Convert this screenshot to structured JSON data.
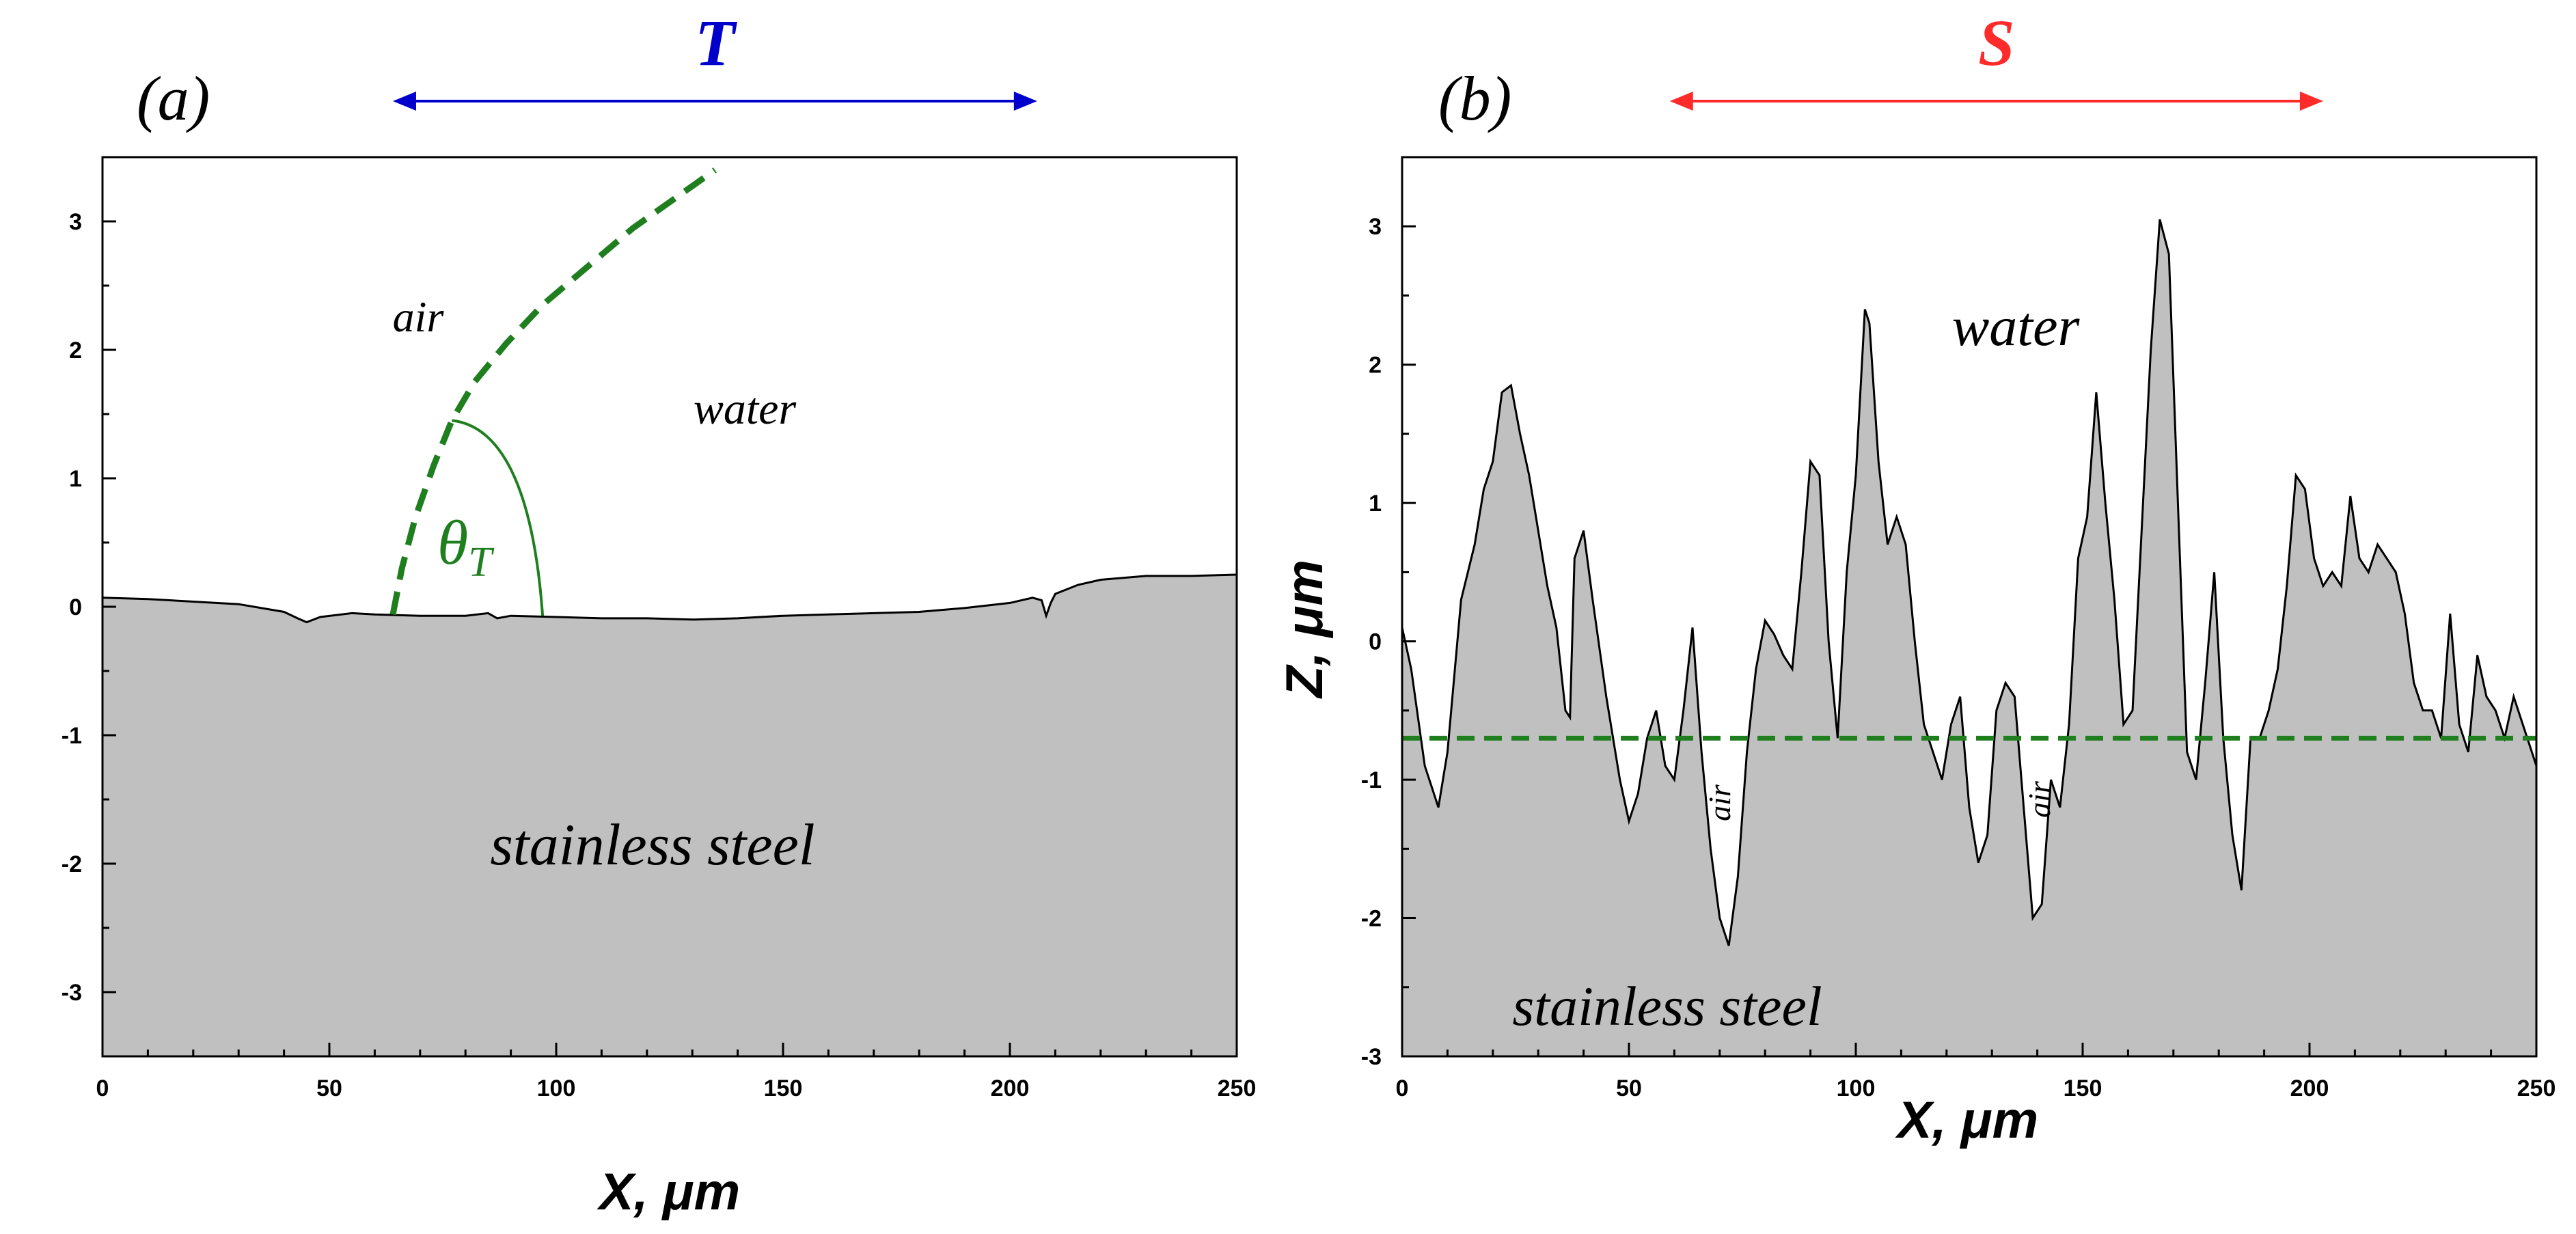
{
  "chart_data": [
    {
      "id": "a",
      "type": "line",
      "panel_label": "(a)",
      "title": "",
      "xlabel": "X, μm",
      "ylabel": "",
      "xlim": [
        0,
        250
      ],
      "ylim": [
        -3.5,
        3.5
      ],
      "xticks": [
        0,
        50,
        100,
        150,
        200,
        250
      ],
      "yticks": [
        -3,
        -2,
        -1,
        0,
        1,
        2,
        3
      ],
      "grid": false,
      "surface_profile": {
        "x": [
          0,
          10,
          20,
          30,
          40,
          43,
          45,
          48,
          55,
          60,
          70,
          80,
          85,
          87,
          90,
          100,
          110,
          120,
          130,
          140,
          150,
          160,
          170,
          180,
          190,
          200,
          205,
          207,
          208,
          209,
          210,
          215,
          220,
          230,
          240,
          250
        ],
        "z": [
          0.07,
          0.06,
          0.04,
          0.02,
          -0.04,
          -0.09,
          -0.12,
          -0.08,
          -0.05,
          -0.06,
          -0.07,
          -0.07,
          -0.05,
          -0.09,
          -0.07,
          -0.08,
          -0.09,
          -0.09,
          -0.1,
          -0.09,
          -0.07,
          -0.06,
          -0.05,
          -0.04,
          -0.01,
          0.03,
          0.07,
          0.05,
          -0.07,
          0.03,
          0.1,
          0.17,
          0.21,
          0.24,
          0.24,
          0.25
        ]
      },
      "droplet_interface": {
        "x": [
          64,
          66,
          69,
          73,
          77,
          82,
          89,
          97,
          107,
          117,
          127,
          135
        ],
        "z": [
          -0.06,
          0.3,
          0.7,
          1.1,
          1.45,
          1.75,
          2.05,
          2.35,
          2.65,
          2.95,
          3.2,
          3.4
        ]
      },
      "span": {
        "label": "T",
        "x_from": 64,
        "x_to": 206,
        "color": "#0000cc"
      },
      "annotations": {
        "angle_label": "θ",
        "angle_subscript": "T",
        "air": "air",
        "water": "water",
        "solid": "stainless steel"
      },
      "colors": {
        "solid": "#c0c0c0",
        "interface": "#1f7f1f",
        "line": "#000000"
      }
    },
    {
      "id": "b",
      "type": "line",
      "panel_label": "(b)",
      "title": "",
      "xlabel": "X, μm",
      "ylabel": "Z, μm",
      "xlim": [
        0,
        250
      ],
      "ylim": [
        -3,
        3.5
      ],
      "xticks": [
        0,
        50,
        100,
        150,
        200,
        250
      ],
      "yticks": [
        -3,
        -2,
        -1,
        0,
        1,
        2,
        3
      ],
      "grid": false,
      "surface_profile": {
        "x": [
          0,
          2,
          5,
          8,
          10,
          13,
          16,
          18,
          20,
          22,
          24,
          26,
          28,
          30,
          32,
          34,
          36,
          37,
          38,
          40,
          42,
          45,
          48,
          50,
          52,
          54,
          56,
          58,
          60,
          62,
          64,
          66,
          68,
          70,
          72,
          74,
          76,
          78,
          80,
          82,
          84,
          86,
          88,
          90,
          92,
          94,
          96,
          98,
          100,
          102,
          103,
          105,
          107,
          109,
          111,
          113,
          115,
          117,
          119,
          121,
          123,
          125,
          127,
          129,
          131,
          133,
          135,
          137,
          139,
          141,
          143,
          145,
          147,
          149,
          151,
          153,
          155,
          157,
          159,
          161,
          163,
          165,
          167,
          169,
          171,
          173,
          175,
          177,
          179,
          181,
          183,
          185,
          187,
          189,
          191,
          193,
          195,
          197,
          199,
          201,
          203,
          205,
          207,
          209,
          211,
          213,
          215,
          217,
          219,
          221,
          223,
          225,
          227,
          229,
          231,
          233,
          235,
          237,
          239,
          241,
          243,
          245,
          247,
          249,
          250
        ],
        "z": [
          0.1,
          -0.2,
          -0.9,
          -1.2,
          -0.8,
          0.3,
          0.7,
          1.1,
          1.3,
          1.8,
          1.85,
          1.5,
          1.2,
          0.8,
          0.4,
          0.1,
          -0.5,
          -0.55,
          0.6,
          0.8,
          0.3,
          -0.4,
          -1.0,
          -1.3,
          -1.1,
          -0.7,
          -0.5,
          -0.9,
          -1.0,
          -0.5,
          0.1,
          -0.8,
          -1.5,
          -2.0,
          -2.2,
          -1.7,
          -0.8,
          -0.2,
          0.15,
          0.05,
          -0.1,
          -0.2,
          0.5,
          1.3,
          1.2,
          0.0,
          -0.7,
          0.5,
          1.2,
          2.4,
          2.3,
          1.3,
          0.7,
          0.9,
          0.7,
          0.0,
          -0.6,
          -0.8,
          -1.0,
          -0.6,
          -0.4,
          -1.2,
          -1.6,
          -1.4,
          -0.5,
          -0.3,
          -0.4,
          -1.2,
          -2.0,
          -1.9,
          -1.0,
          -1.2,
          -0.6,
          0.6,
          0.9,
          1.8,
          1.0,
          0.3,
          -0.6,
          -0.5,
          0.8,
          2.1,
          3.05,
          2.8,
          1.0,
          -0.8,
          -1.0,
          -0.3,
          0.5,
          -0.7,
          -1.4,
          -1.8,
          -0.7,
          -0.7,
          -0.5,
          -0.2,
          0.4,
          1.2,
          1.1,
          0.6,
          0.4,
          0.5,
          0.4,
          1.05,
          0.6,
          0.5,
          0.7,
          0.6,
          0.5,
          0.2,
          -0.3,
          -0.5,
          -0.5,
          -0.7,
          0.2,
          -0.6,
          -0.8,
          -0.1,
          -0.4,
          -0.5,
          -0.7,
          -0.4,
          -0.6,
          -0.8,
          -0.9
        ]
      },
      "water_level_z": -0.7,
      "span": {
        "label": "S",
        "x_from": 59,
        "x_to": 203,
        "color": "#ff2a2a"
      },
      "annotations": {
        "air_1": "air",
        "air_2": "air",
        "water": "water",
        "solid": "stainless steel"
      },
      "colors": {
        "solid": "#c0c0c0",
        "level": "#1f7f1f",
        "line": "#000000"
      }
    }
  ]
}
